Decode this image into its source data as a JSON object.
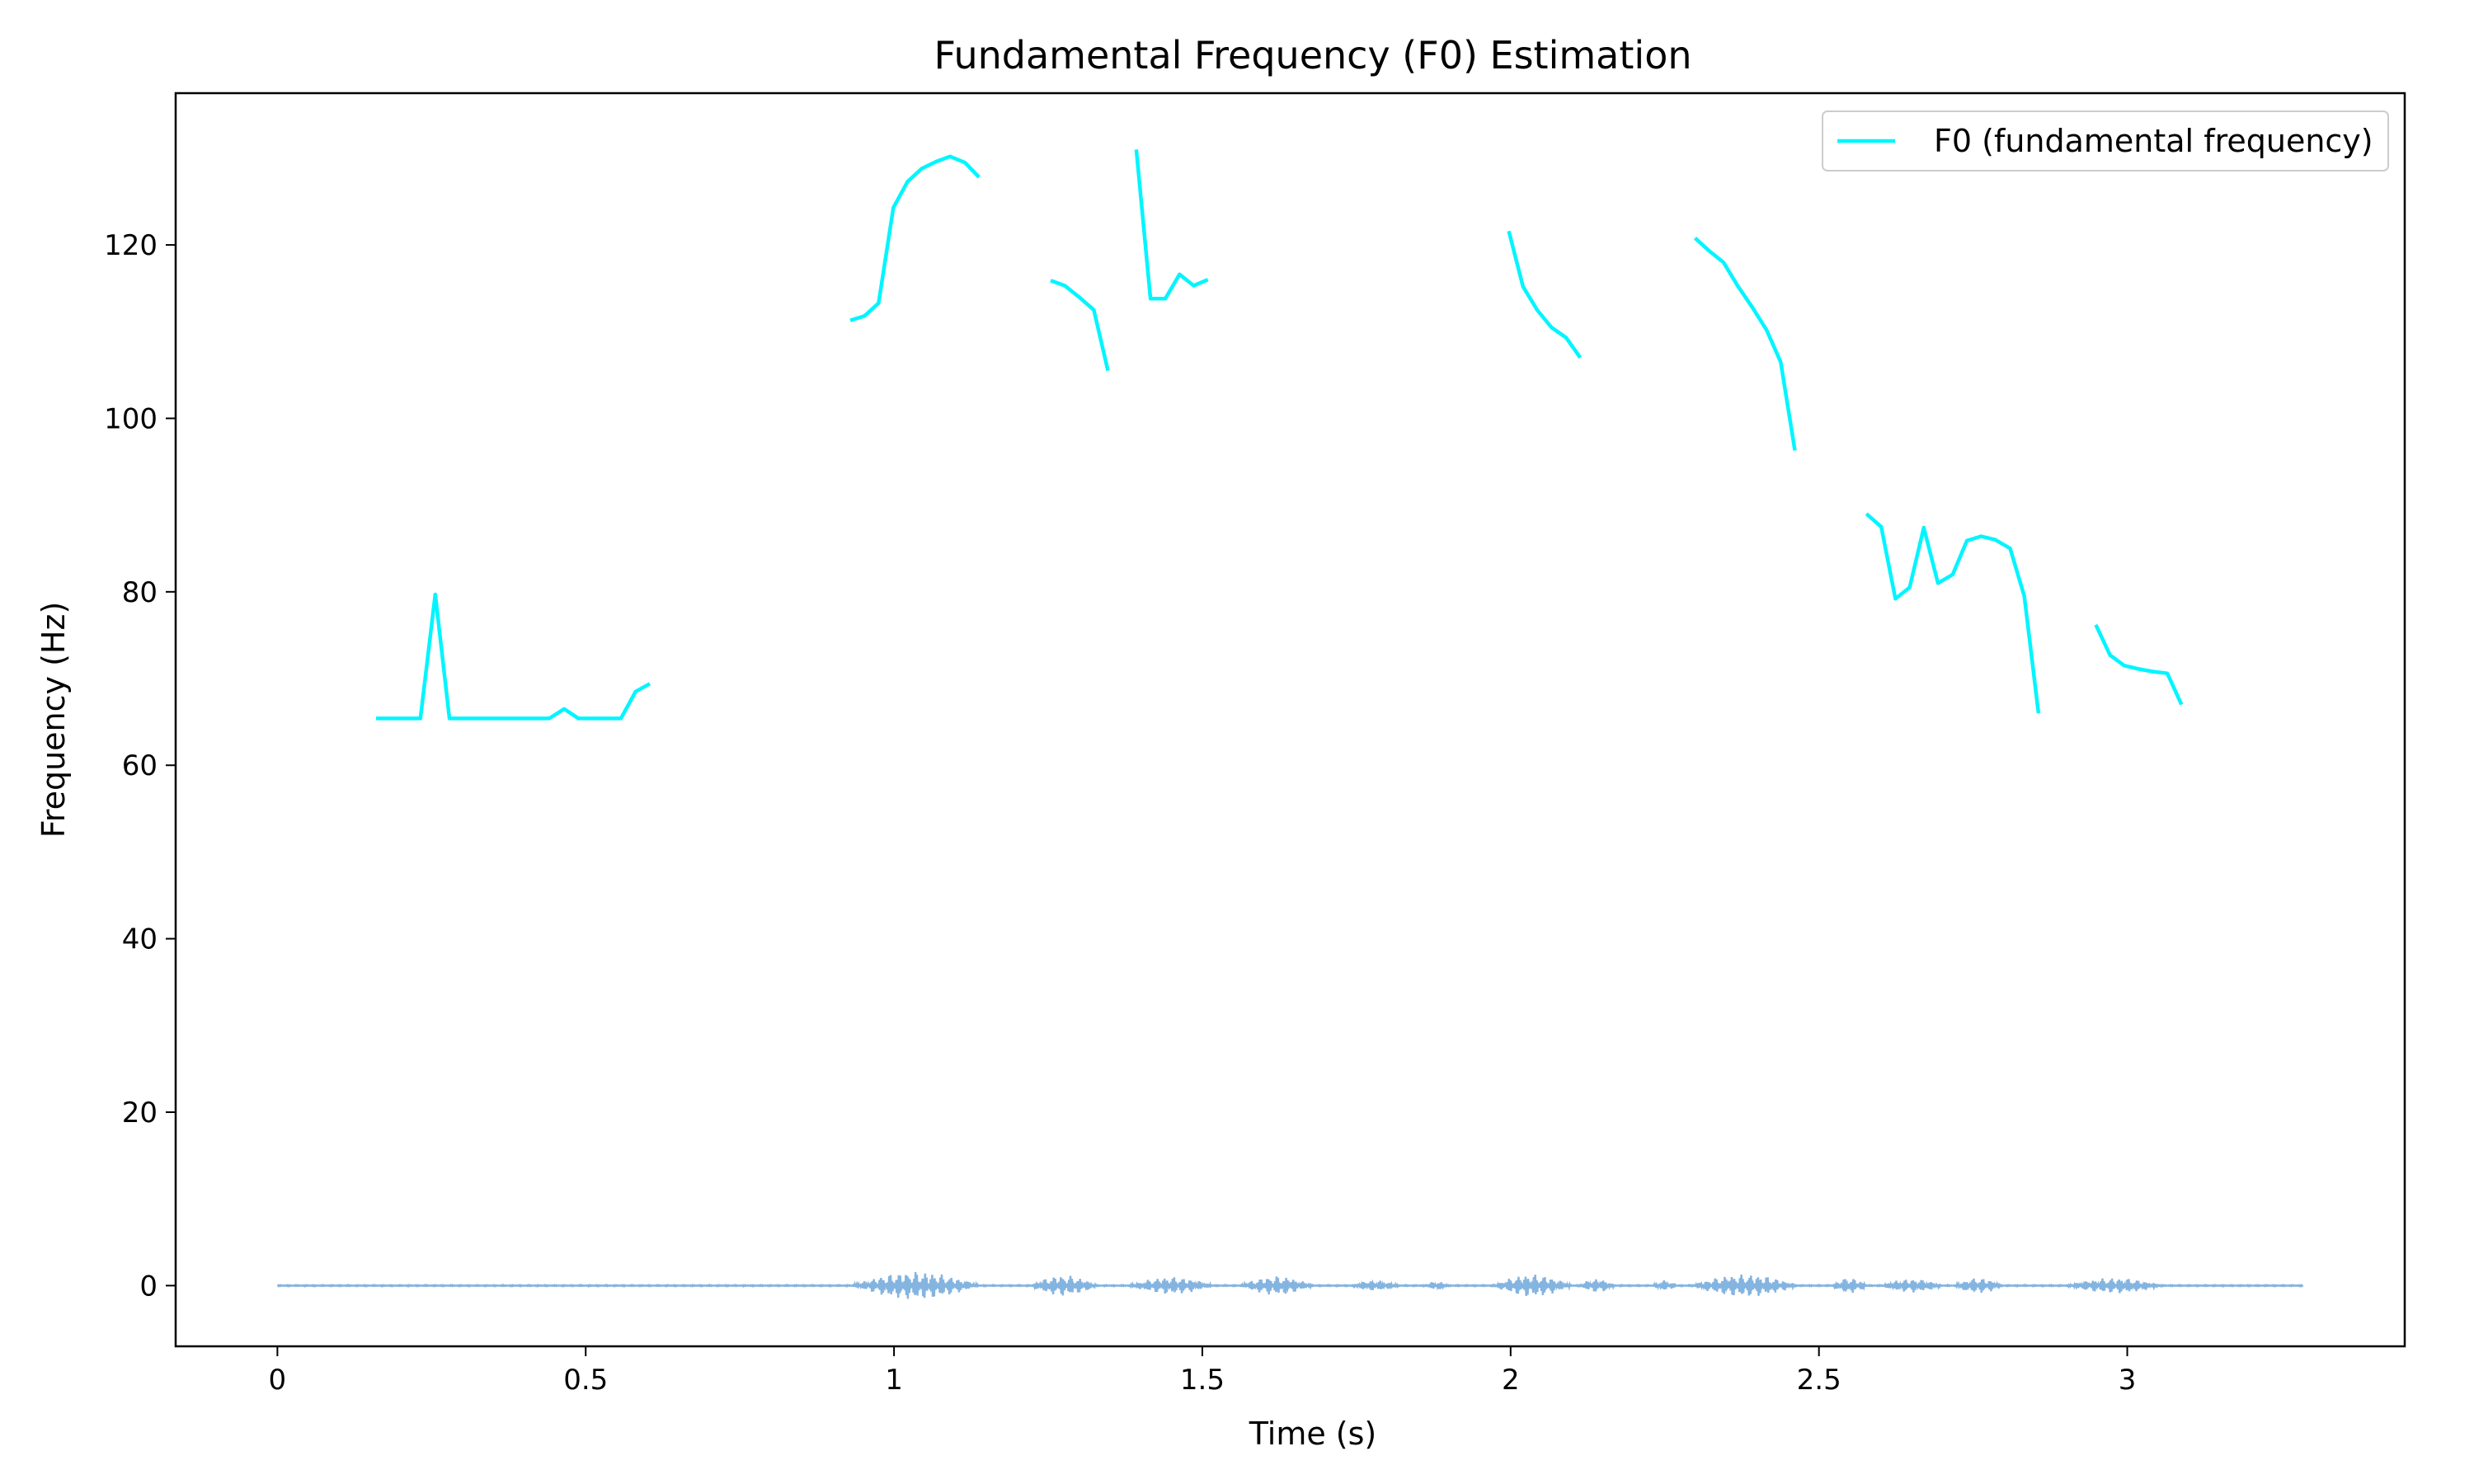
{
  "chart_data": {
    "type": "line",
    "title": "Fundamental Frequency (F0) Estimation",
    "xlabel": "Time (s)",
    "ylabel": "Frequency (Hz)",
    "xlim": [
      -0.165,
      3.45
    ],
    "ylim": [
      -7,
      137.5
    ],
    "xticks": [
      0,
      0.5,
      1,
      1.5,
      2,
      2.5,
      3
    ],
    "xtick_labels": [
      "0",
      "0.5",
      "1",
      "1.5",
      "2",
      "2.5",
      "3"
    ],
    "yticks": [
      0,
      20,
      40,
      60,
      80,
      100,
      120
    ],
    "ytick_labels": [
      "0",
      "20",
      "40",
      "60",
      "80",
      "100",
      "120"
    ],
    "grid": false,
    "legend": {
      "position": "top-right",
      "entries": [
        "F0 (fundamental frequency)"
      ]
    },
    "colors": {
      "f0": "#00f5ff",
      "waveform": "#5b9bd5"
    },
    "series": [
      {
        "name": "F0 (fundamental frequency)",
        "segments": [
          [
            [
              0.16,
              65.4
            ],
            [
              0.186,
              65.4
            ],
            [
              0.209,
              65.4
            ],
            [
              0.232,
              65.4
            ],
            [
              0.256,
              79.7
            ],
            [
              0.279,
              65.4
            ],
            [
              0.302,
              65.4
            ],
            [
              0.325,
              65.4
            ],
            [
              0.349,
              65.4
            ],
            [
              0.372,
              65.4
            ],
            [
              0.395,
              65.4
            ],
            [
              0.418,
              65.4
            ],
            [
              0.441,
              65.4
            ],
            [
              0.465,
              66.5
            ],
            [
              0.488,
              65.4
            ],
            [
              0.511,
              65.4
            ],
            [
              0.534,
              65.4
            ],
            [
              0.557,
              65.4
            ],
            [
              0.581,
              68.5
            ],
            [
              0.604,
              69.4
            ]
          ],
          [
            [
              0.929,
              111.3
            ],
            [
              0.952,
              111.8
            ],
            [
              0.975,
              113.3
            ],
            [
              0.999,
              124.3
            ],
            [
              1.022,
              127.3
            ],
            [
              1.045,
              128.8
            ],
            [
              1.068,
              129.6
            ],
            [
              1.091,
              130.2
            ],
            [
              1.115,
              129.5
            ],
            [
              1.138,
              127.8
            ]
          ],
          [
            [
              1.254,
              115.9
            ],
            [
              1.277,
              115.3
            ],
            [
              1.3,
              114.0
            ],
            [
              1.324,
              112.5
            ],
            [
              1.347,
              105.5
            ]
          ],
          [
            [
              1.393,
              131.0
            ],
            [
              1.416,
              113.8
            ],
            [
              1.44,
              113.8
            ],
            [
              1.463,
              116.6
            ],
            [
              1.486,
              115.3
            ],
            [
              1.509,
              116.0
            ]
          ],
          [
            [
              1.997,
              121.6
            ],
            [
              2.02,
              115.2
            ],
            [
              2.043,
              112.5
            ],
            [
              2.066,
              110.5
            ],
            [
              2.09,
              109.3
            ],
            [
              2.113,
              107.0
            ]
          ],
          [
            [
              2.299,
              120.8
            ],
            [
              2.322,
              119.3
            ],
            [
              2.345,
              118.0
            ],
            [
              2.368,
              115.3
            ],
            [
              2.392,
              112.8
            ],
            [
              2.415,
              110.2
            ],
            [
              2.438,
              106.5
            ],
            [
              2.461,
              96.3
            ]
          ],
          [
            [
              2.577,
              89.0
            ],
            [
              2.601,
              87.5
            ],
            [
              2.624,
              79.2
            ],
            [
              2.647,
              80.5
            ],
            [
              2.67,
              87.4
            ],
            [
              2.693,
              81.0
            ],
            [
              2.717,
              82.0
            ],
            [
              2.74,
              85.9
            ],
            [
              2.763,
              86.4
            ],
            [
              2.786,
              86.0
            ],
            [
              2.81,
              85.0
            ],
            [
              2.833,
              79.5
            ],
            [
              2.856,
              66.0
            ]
          ],
          [
            [
              2.949,
              76.2
            ],
            [
              2.972,
              72.7
            ],
            [
              2.995,
              71.5
            ],
            [
              3.019,
              71.1
            ],
            [
              3.042,
              70.8
            ],
            [
              3.065,
              70.6
            ],
            [
              3.088,
              67.0
            ]
          ]
        ]
      },
      {
        "name": "",
        "waveform": {
          "x_range": [
            0,
            3.285
          ],
          "bursts": [
            [
              0.93,
              1.14,
              1.6
            ],
            [
              1.22,
              1.33,
              1.2
            ],
            [
              1.38,
              1.52,
              1.0
            ],
            [
              1.56,
              1.68,
              1.1
            ],
            [
              1.74,
              1.82,
              0.6
            ],
            [
              1.86,
              1.9,
              0.5
            ],
            [
              1.97,
              2.1,
              1.3
            ],
            [
              2.11,
              2.17,
              0.8
            ],
            [
              2.23,
              2.27,
              0.6
            ],
            [
              2.29,
              2.47,
              1.3
            ],
            [
              2.52,
              2.58,
              0.9
            ],
            [
              2.6,
              2.7,
              0.8
            ],
            [
              2.72,
              2.8,
              0.9
            ],
            [
              2.9,
              3.06,
              0.9
            ]
          ]
        }
      }
    ]
  }
}
